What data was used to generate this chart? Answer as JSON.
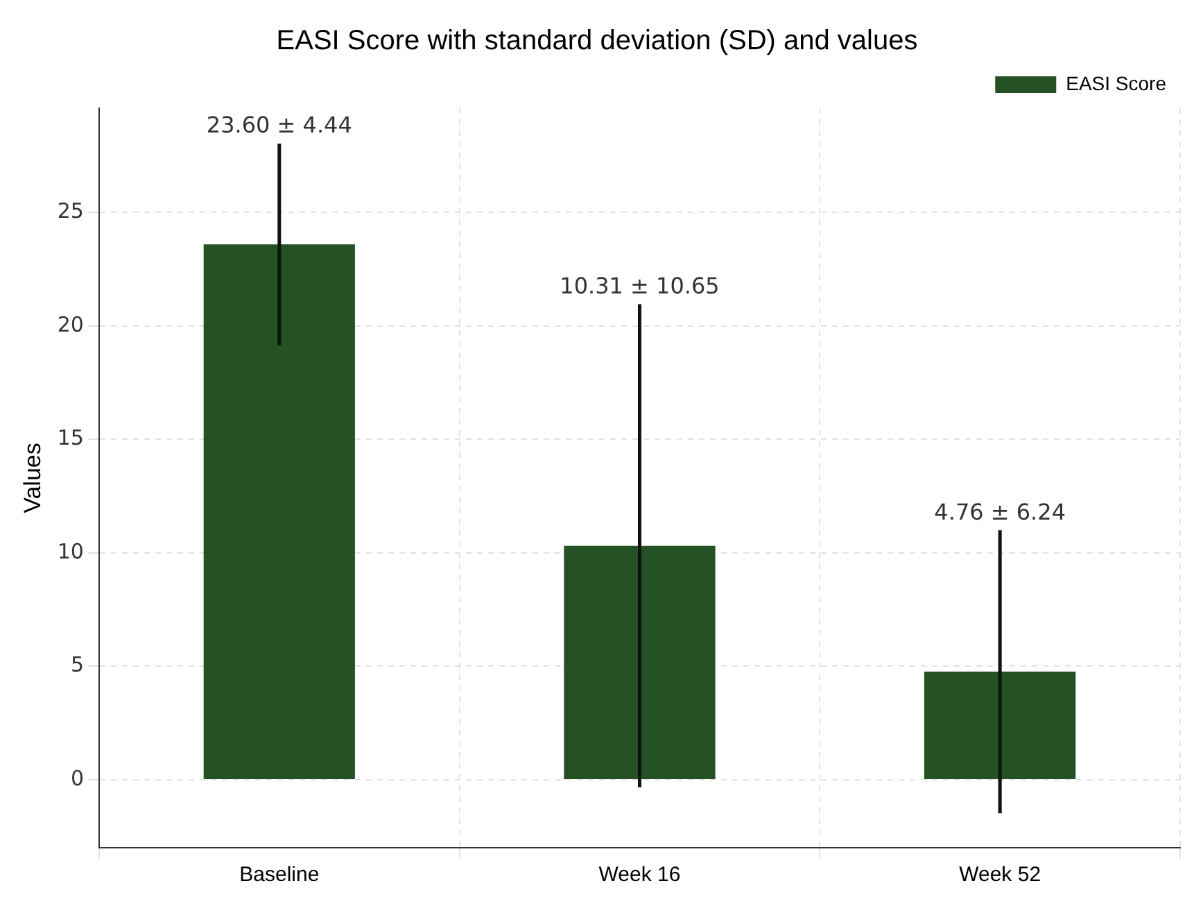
{
  "chart_data": {
    "type": "bar",
    "title": "EASI Score with standard deviation (SD) and values",
    "ylabel": "Values",
    "categories": [
      "Baseline",
      "Week 16",
      "Week 52"
    ],
    "series": [
      {
        "name": "EASI Score",
        "color": "#245224",
        "values": [
          23.6,
          10.31,
          4.76
        ],
        "errors": [
          4.44,
          10.65,
          6.24
        ]
      }
    ],
    "annotations": [
      {
        "text": "23.60 ± 4.44",
        "x": "Baseline",
        "y": 28.04
      },
      {
        "text": "10.31 ± 10.65",
        "x": "Week 16",
        "y": 20.96
      },
      {
        "text": "4.76 ± 6.24",
        "x": "Week 52",
        "y": 11.0
      }
    ],
    "ylim": [
      -3,
      29.6
    ],
    "yticks": [
      0,
      5,
      10,
      15,
      20,
      25
    ],
    "grid": true,
    "legend": "top right"
  }
}
